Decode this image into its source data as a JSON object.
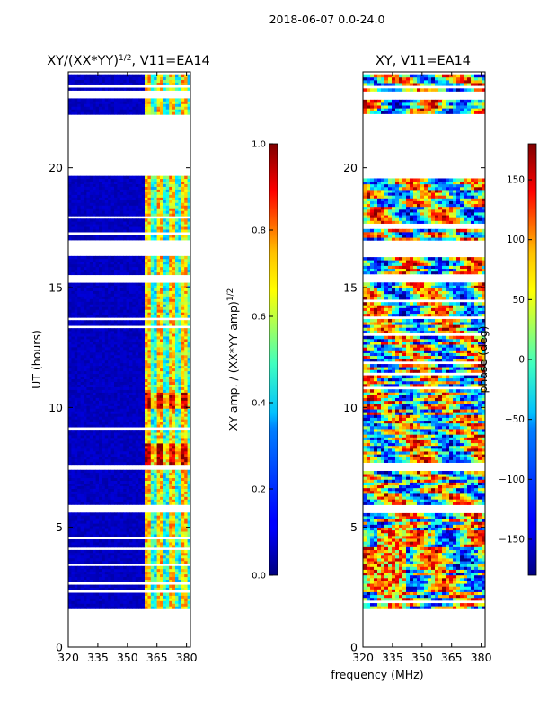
{
  "figure": {
    "suptitle": "2018-06-07 0.0-24.0"
  },
  "colors": {
    "jet": [
      "#00007f",
      "#0000ff",
      "#007fff",
      "#00ffff",
      "#7fff7f",
      "#ffff00",
      "#ff7f00",
      "#ff0000",
      "#7f0000"
    ]
  },
  "chart_data": [
    {
      "type": "heatmap",
      "title": "XY/(XX*YY)",
      "title_exp": "1/2",
      "title_suffix": ", V11=EA14",
      "xlabel": "",
      "ylabel": "UT (hours)",
      "xlim": [
        320,
        382
      ],
      "ylim": [
        0,
        24
      ],
      "xticks": [
        320,
        335,
        350,
        365,
        380
      ],
      "yticks": [
        0,
        5,
        10,
        15,
        20
      ],
      "data_ut_range": [
        1.6,
        23.9
      ],
      "gaps_ut": [
        [
          5.6,
          5.9
        ],
        [
          7.4,
          7.6
        ],
        [
          15.2,
          15.4
        ],
        [
          16.3,
          17.0
        ],
        [
          19.7,
          22.2
        ],
        [
          22.9,
          23.2
        ]
      ],
      "bright_band_mhz": [
        358,
        382
      ],
      "colorbar": {
        "label": "XY amp. / (XX*YY amp)",
        "label_exp": "1/2",
        "range": [
          0.0,
          1.0
        ],
        "ticks": [
          "0.0",
          "0.2",
          "0.4",
          "0.6",
          "0.8",
          "1.0"
        ]
      }
    },
    {
      "type": "heatmap",
      "title": "XY, V11=EA14",
      "xlabel": "frequency (MHz)",
      "ylabel": "",
      "xlim": [
        320,
        382
      ],
      "ylim": [
        0,
        24
      ],
      "xticks": [
        320,
        335,
        350,
        365,
        380
      ],
      "yticks": [
        0,
        5,
        10,
        15,
        20
      ],
      "data_ut_range": [
        1.6,
        23.9
      ],
      "colorbar": {
        "label": "phase (deg)",
        "range": [
          -180,
          180
        ],
        "ticks": [
          "−150",
          "−100",
          "−50",
          "0",
          "50",
          "100",
          "150"
        ]
      }
    }
  ]
}
